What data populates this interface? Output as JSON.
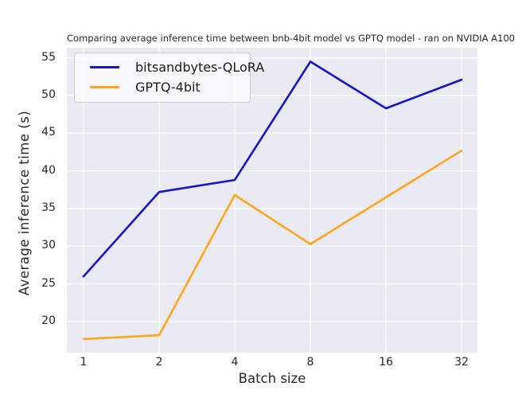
{
  "figure": {
    "background": "#ffffff",
    "plot_background": "#EAEAF2",
    "grid_color": "#FFFFFF",
    "text_color": "#262626"
  },
  "chart_data": {
    "type": "line",
    "title": "Comparing average inference time between bnb-4bit model vs GPTQ model - ran on NVIDIA A100",
    "xlabel": "Batch size",
    "ylabel": "Average inference time (s)",
    "categories": [
      "1",
      "2",
      "4",
      "8",
      "16",
      "32"
    ],
    "x_scale": "log2 (categorical spacing)",
    "series": [
      {
        "name": "bitsandbytes-QLoRA",
        "color": "#1414CC",
        "values": [
          26.0,
          37.2,
          38.8,
          54.5,
          48.3,
          52.1
        ]
      },
      {
        "name": "GPTQ-4bit",
        "color": "#FFA51E",
        "values": [
          17.7,
          18.2,
          36.8,
          30.3,
          36.5,
          42.7
        ]
      }
    ],
    "yticks": [
      20,
      25,
      30,
      35,
      40,
      45,
      50,
      55
    ],
    "ylim": [
      15.86,
      56.34
    ],
    "grid": true,
    "legend_position": "upper left"
  }
}
